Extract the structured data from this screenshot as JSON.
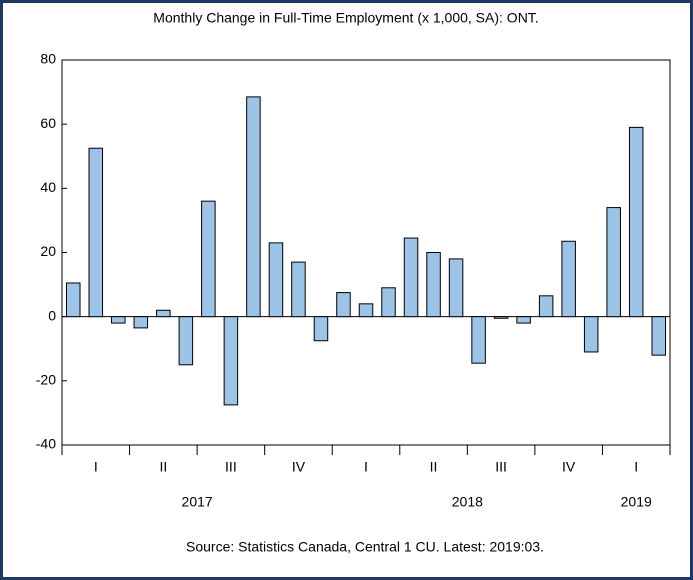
{
  "chart_data": {
    "type": "bar",
    "title": "Monthly Change in Full-Time Employment (x 1,000, SA): ONT.",
    "source": "Source: Statistics Canada, Central 1 CU. Latest: 2019:03.",
    "categories": [
      null,
      null,
      null,
      null,
      null,
      null,
      null,
      null,
      null,
      null,
      null,
      null,
      null,
      null,
      null,
      null,
      null,
      null,
      null,
      null,
      null,
      null,
      null,
      null,
      null,
      null,
      null
    ],
    "values": [
      10.5,
      52.5,
      -2,
      -3.5,
      2,
      -15,
      36,
      -27.5,
      68.5,
      23,
      17,
      -7.5,
      7.5,
      4,
      9,
      24.5,
      20,
      18,
      -14.5,
      -0.5,
      -2,
      6.5,
      23.5,
      -11,
      34,
      59,
      -12
    ],
    "quarter_labels": [
      "I",
      "II",
      "III",
      "IV",
      "I",
      "II",
      "III",
      "IV",
      "I"
    ],
    "year_labels": [
      "2017",
      "2018",
      "2019"
    ],
    "color": "#9dc3e6",
    "ylim": [
      -40,
      80
    ],
    "yticks": [
      -40,
      -20,
      0,
      20,
      40,
      60,
      80
    ],
    "grid": false
  }
}
